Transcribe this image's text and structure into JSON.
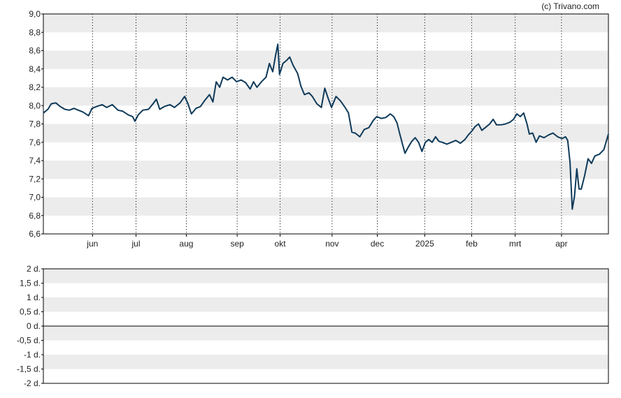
{
  "credit": "(c) Trivano.com",
  "colors": {
    "line": "#0e3a5a",
    "band": "#ececec",
    "axis": "#000000",
    "gridline": "#000000"
  },
  "chart_data": [
    {
      "type": "line",
      "title": "",
      "xlabel": "",
      "ylabel": "",
      "ylim": [
        6.6,
        9.0
      ],
      "y_ticks": [
        "9,0",
        "8,8",
        "8,6",
        "8,4",
        "8,2",
        "8,0",
        "7,8",
        "7,6",
        "7,4",
        "7,2",
        "7,0",
        "6,8",
        "6,6"
      ],
      "x_ticks": [
        {
          "label": "jun",
          "t": 0.087
        },
        {
          "label": "jul",
          "t": 0.164
        },
        {
          "label": "aug",
          "t": 0.253
        },
        {
          "label": "sep",
          "t": 0.343
        },
        {
          "label": "okt",
          "t": 0.419
        },
        {
          "label": "nov",
          "t": 0.511
        },
        {
          "label": "dec",
          "t": 0.591
        },
        {
          "label": "2025",
          "t": 0.675
        },
        {
          "label": "feb",
          "t": 0.758
        },
        {
          "label": "mrt",
          "t": 0.835
        },
        {
          "label": "apr",
          "t": 0.917
        }
      ],
      "grid": "horizontal bands, dotted vertical month lines",
      "series": [
        {
          "points": [
            [
              0.0,
              7.92
            ],
            [
              0.008,
              7.96
            ],
            [
              0.014,
              8.02
            ],
            [
              0.022,
              8.03
            ],
            [
              0.03,
              7.99
            ],
            [
              0.038,
              7.96
            ],
            [
              0.046,
              7.95
            ],
            [
              0.054,
              7.97
            ],
            [
              0.062,
              7.95
            ],
            [
              0.07,
              7.93
            ],
            [
              0.08,
              7.89
            ],
            [
              0.086,
              7.97
            ],
            [
              0.094,
              7.99
            ],
            [
              0.104,
              8.01
            ],
            [
              0.112,
              7.98
            ],
            [
              0.122,
              8.01
            ],
            [
              0.132,
              7.95
            ],
            [
              0.14,
              7.94
            ],
            [
              0.15,
              7.9
            ],
            [
              0.158,
              7.88
            ],
            [
              0.162,
              7.83
            ],
            [
              0.168,
              7.9
            ],
            [
              0.176,
              7.95
            ],
            [
              0.186,
              7.96
            ],
            [
              0.194,
              8.02
            ],
            [
              0.2,
              8.07
            ],
            [
              0.206,
              7.96
            ],
            [
              0.214,
              7.99
            ],
            [
              0.224,
              8.01
            ],
            [
              0.232,
              7.98
            ],
            [
              0.242,
              8.03
            ],
            [
              0.25,
              8.1
            ],
            [
              0.256,
              8.02
            ],
            [
              0.262,
              7.91
            ],
            [
              0.27,
              7.97
            ],
            [
              0.278,
              7.99
            ],
            [
              0.286,
              8.06
            ],
            [
              0.294,
              8.12
            ],
            [
              0.3,
              8.04
            ],
            [
              0.306,
              8.26
            ],
            [
              0.312,
              8.2
            ],
            [
              0.318,
              8.31
            ],
            [
              0.326,
              8.28
            ],
            [
              0.334,
              8.31
            ],
            [
              0.342,
              8.26
            ],
            [
              0.35,
              8.28
            ],
            [
              0.358,
              8.25
            ],
            [
              0.366,
              8.18
            ],
            [
              0.372,
              8.26
            ],
            [
              0.378,
              8.2
            ],
            [
              0.386,
              8.26
            ],
            [
              0.394,
              8.31
            ],
            [
              0.4,
              8.46
            ],
            [
              0.406,
              8.37
            ],
            [
              0.411,
              8.55
            ],
            [
              0.415,
              8.67
            ],
            [
              0.418,
              8.34
            ],
            [
              0.424,
              8.46
            ],
            [
              0.43,
              8.49
            ],
            [
              0.436,
              8.53
            ],
            [
              0.442,
              8.44
            ],
            [
              0.45,
              8.35
            ],
            [
              0.456,
              8.21
            ],
            [
              0.462,
              8.12
            ],
            [
              0.47,
              8.14
            ],
            [
              0.476,
              8.1
            ],
            [
              0.484,
              8.02
            ],
            [
              0.492,
              7.98
            ],
            [
              0.498,
              8.19
            ],
            [
              0.504,
              8.08
            ],
            [
              0.51,
              7.98
            ],
            [
              0.518,
              8.1
            ],
            [
              0.526,
              8.05
            ],
            [
              0.534,
              7.98
            ],
            [
              0.54,
              7.92
            ],
            [
              0.546,
              7.71
            ],
            [
              0.552,
              7.7
            ],
            [
              0.56,
              7.66
            ],
            [
              0.568,
              7.74
            ],
            [
              0.576,
              7.76
            ],
            [
              0.584,
              7.84
            ],
            [
              0.59,
              7.88
            ],
            [
              0.598,
              7.86
            ],
            [
              0.606,
              7.87
            ],
            [
              0.614,
              7.91
            ],
            [
              0.62,
              7.88
            ],
            [
              0.626,
              7.81
            ],
            [
              0.63,
              7.71
            ],
            [
              0.636,
              7.57
            ],
            [
              0.64,
              7.48
            ],
            [
              0.646,
              7.55
            ],
            [
              0.652,
              7.61
            ],
            [
              0.658,
              7.65
            ],
            [
              0.664,
              7.6
            ],
            [
              0.67,
              7.5
            ],
            [
              0.676,
              7.6
            ],
            [
              0.682,
              7.63
            ],
            [
              0.688,
              7.6
            ],
            [
              0.694,
              7.66
            ],
            [
              0.7,
              7.61
            ],
            [
              0.706,
              7.6
            ],
            [
              0.714,
              7.58
            ],
            [
              0.722,
              7.6
            ],
            [
              0.73,
              7.62
            ],
            [
              0.738,
              7.59
            ],
            [
              0.746,
              7.63
            ],
            [
              0.752,
              7.68
            ],
            [
              0.758,
              7.72
            ],
            [
              0.764,
              7.77
            ],
            [
              0.77,
              7.8
            ],
            [
              0.776,
              7.73
            ],
            [
              0.782,
              7.76
            ],
            [
              0.79,
              7.8
            ],
            [
              0.796,
              7.85
            ],
            [
              0.802,
              7.79
            ],
            [
              0.81,
              7.79
            ],
            [
              0.818,
              7.8
            ],
            [
              0.826,
              7.82
            ],
            [
              0.832,
              7.85
            ],
            [
              0.838,
              7.91
            ],
            [
              0.844,
              7.88
            ],
            [
              0.85,
              7.92
            ],
            [
              0.856,
              7.8
            ],
            [
              0.86,
              7.69
            ],
            [
              0.866,
              7.7
            ],
            [
              0.872,
              7.6
            ],
            [
              0.878,
              7.67
            ],
            [
              0.886,
              7.65
            ],
            [
              0.894,
              7.68
            ],
            [
              0.902,
              7.7
            ],
            [
              0.91,
              7.66
            ],
            [
              0.918,
              7.64
            ],
            [
              0.924,
              7.66
            ],
            [
              0.928,
              7.62
            ],
            [
              0.932,
              7.38
            ],
            [
              0.936,
              6.87
            ],
            [
              0.94,
              7.01
            ],
            [
              0.944,
              7.31
            ],
            [
              0.948,
              7.09
            ],
            [
              0.952,
              7.09
            ],
            [
              0.958,
              7.24
            ],
            [
              0.964,
              7.42
            ],
            [
              0.97,
              7.37
            ],
            [
              0.976,
              7.45
            ],
            [
              0.984,
              7.47
            ],
            [
              0.992,
              7.52
            ],
            [
              1.0,
              7.69
            ]
          ]
        }
      ]
    },
    {
      "type": "line",
      "title": "",
      "xlabel": "",
      "ylabel": "",
      "ylim": [
        -2,
        2
      ],
      "y_ticks": [
        "2 d.",
        "1,5 d.",
        "1 d.",
        "0,5 d.",
        "0 d.",
        "-0,5 d.",
        "-1 d.",
        "-1,5 d.",
        "-2 d."
      ],
      "grid": "horizontal bands",
      "series": []
    }
  ]
}
